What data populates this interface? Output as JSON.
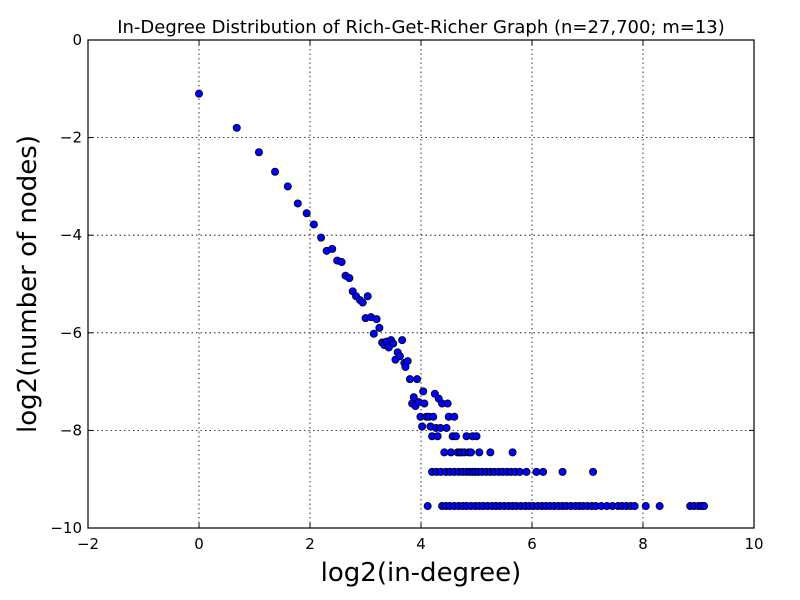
{
  "chart_data": {
    "type": "scatter",
    "title": "In-Degree Distribution of Rich-Get-Richer Graph (n=27,700; m=13)",
    "xlabel": "log2(in-degree)",
    "ylabel": "log2(number of nodes)",
    "xlim": [
      -2,
      10
    ],
    "ylim": [
      -10,
      0
    ],
    "xticks": [
      -2,
      0,
      2,
      4,
      6,
      8,
      10
    ],
    "yticks": [
      -10,
      -8,
      -6,
      -4,
      -2,
      0
    ],
    "xtick_labels": [
      "−2",
      "0",
      "2",
      "4",
      "6",
      "8",
      "10"
    ],
    "ytick_labels": [
      "−10",
      "−8",
      "−6",
      "−4",
      "−2",
      "0"
    ],
    "grid": true,
    "legend": "none",
    "marker_color": "#0000ff",
    "series": [
      {
        "points": [
          [
            0.0,
            -1.1
          ],
          [
            0.68,
            -1.8
          ],
          [
            1.08,
            -2.3
          ],
          [
            1.37,
            -2.7
          ],
          [
            1.6,
            -3.0
          ],
          [
            1.78,
            -3.35
          ],
          [
            1.94,
            -3.55
          ],
          [
            2.07,
            -3.78
          ],
          [
            2.2,
            -4.05
          ],
          [
            2.3,
            -4.32
          ],
          [
            2.4,
            -4.28
          ],
          [
            2.49,
            -4.52
          ],
          [
            2.57,
            -4.55
          ],
          [
            2.64,
            -4.83
          ],
          [
            2.71,
            -4.88
          ],
          [
            2.77,
            -5.15
          ],
          [
            2.83,
            -5.25
          ],
          [
            2.9,
            -5.33
          ],
          [
            2.95,
            -5.38
          ],
          [
            3.0,
            -5.7
          ],
          [
            3.04,
            -5.25
          ],
          [
            3.1,
            -5.68
          ],
          [
            3.15,
            -6.02
          ],
          [
            3.2,
            -5.72
          ],
          [
            3.25,
            -5.9
          ],
          [
            3.3,
            -6.2
          ],
          [
            3.34,
            -6.25
          ],
          [
            3.38,
            -6.18
          ],
          [
            3.42,
            -6.3
          ],
          [
            3.46,
            -6.15
          ],
          [
            3.5,
            -6.22
          ],
          [
            3.54,
            -6.55
          ],
          [
            3.58,
            -6.4
          ],
          [
            3.62,
            -6.48
          ],
          [
            3.66,
            -6.15
          ],
          [
            3.7,
            -6.62
          ],
          [
            3.72,
            -6.7
          ],
          [
            3.76,
            -6.58
          ],
          [
            3.8,
            -6.95
          ],
          [
            3.84,
            -7.45
          ],
          [
            3.87,
            -7.32
          ],
          [
            3.9,
            -7.5
          ],
          [
            3.93,
            -6.95
          ],
          [
            3.96,
            -7.42
          ],
          [
            3.99,
            -7.72
          ],
          [
            4.02,
            -7.92
          ],
          [
            4.04,
            -7.2
          ],
          [
            4.06,
            -7.45
          ],
          [
            4.1,
            -7.72
          ],
          [
            4.14,
            -7.72
          ],
          [
            4.17,
            -7.92
          ],
          [
            4.2,
            -8.12
          ],
          [
            4.22,
            -7.72
          ],
          [
            4.25,
            -7.25
          ],
          [
            4.27,
            -7.95
          ],
          [
            4.3,
            -8.12
          ],
          [
            4.32,
            -7.35
          ],
          [
            4.35,
            -7.95
          ],
          [
            4.38,
            -7.45
          ],
          [
            4.42,
            -8.45
          ],
          [
            4.46,
            -7.95
          ],
          [
            4.48,
            -7.45
          ],
          [
            4.5,
            -7.72
          ],
          [
            4.54,
            -8.45
          ],
          [
            4.57,
            -8.12
          ],
          [
            4.6,
            -7.72
          ],
          [
            4.63,
            -8.12
          ],
          [
            4.66,
            -8.45
          ],
          [
            4.7,
            -8.45
          ],
          [
            4.73,
            -8.45
          ],
          [
            4.78,
            -8.45
          ],
          [
            4.82,
            -8.12
          ],
          [
            4.86,
            -8.45
          ],
          [
            4.9,
            -8.45
          ],
          [
            4.93,
            -8.12
          ],
          [
            5.0,
            -8.12
          ],
          [
            5.05,
            -8.45
          ],
          [
            5.25,
            -8.45
          ],
          [
            5.65,
            -8.45
          ],
          [
            4.2,
            -8.85
          ],
          [
            4.28,
            -8.85
          ],
          [
            4.36,
            -8.85
          ],
          [
            4.45,
            -8.85
          ],
          [
            4.52,
            -8.85
          ],
          [
            4.6,
            -8.85
          ],
          [
            4.68,
            -8.85
          ],
          [
            4.75,
            -8.85
          ],
          [
            4.82,
            -8.85
          ],
          [
            4.88,
            -8.85
          ],
          [
            4.93,
            -8.85
          ],
          [
            4.98,
            -8.85
          ],
          [
            5.03,
            -8.85
          ],
          [
            5.1,
            -8.85
          ],
          [
            5.18,
            -8.85
          ],
          [
            5.25,
            -8.85
          ],
          [
            5.32,
            -8.85
          ],
          [
            5.4,
            -8.85
          ],
          [
            5.47,
            -8.85
          ],
          [
            5.55,
            -8.85
          ],
          [
            5.62,
            -8.85
          ],
          [
            5.7,
            -8.85
          ],
          [
            5.78,
            -8.85
          ],
          [
            5.9,
            -8.85
          ],
          [
            6.08,
            -8.85
          ],
          [
            6.2,
            -8.85
          ],
          [
            6.55,
            -8.85
          ],
          [
            7.1,
            -8.85
          ],
          [
            4.12,
            -9.55
          ],
          [
            4.38,
            -9.55
          ],
          [
            4.45,
            -9.55
          ],
          [
            4.52,
            -9.55
          ],
          [
            4.6,
            -9.55
          ],
          [
            4.68,
            -9.55
          ],
          [
            4.75,
            -9.55
          ],
          [
            4.82,
            -9.55
          ],
          [
            4.9,
            -9.55
          ],
          [
            4.98,
            -9.55
          ],
          [
            5.05,
            -9.55
          ],
          [
            5.12,
            -9.55
          ],
          [
            5.2,
            -9.55
          ],
          [
            5.28,
            -9.55
          ],
          [
            5.35,
            -9.55
          ],
          [
            5.42,
            -9.55
          ],
          [
            5.5,
            -9.55
          ],
          [
            5.58,
            -9.55
          ],
          [
            5.65,
            -9.55
          ],
          [
            5.72,
            -9.55
          ],
          [
            5.8,
            -9.55
          ],
          [
            5.88,
            -9.55
          ],
          [
            5.95,
            -9.55
          ],
          [
            6.02,
            -9.55
          ],
          [
            6.1,
            -9.55
          ],
          [
            6.18,
            -9.55
          ],
          [
            6.25,
            -9.55
          ],
          [
            6.32,
            -9.55
          ],
          [
            6.4,
            -9.55
          ],
          [
            6.48,
            -9.55
          ],
          [
            6.55,
            -9.55
          ],
          [
            6.62,
            -9.55
          ],
          [
            6.7,
            -9.55
          ],
          [
            6.78,
            -9.55
          ],
          [
            6.85,
            -9.55
          ],
          [
            6.92,
            -9.55
          ],
          [
            7.0,
            -9.55
          ],
          [
            7.08,
            -9.55
          ],
          [
            7.15,
            -9.55
          ],
          [
            7.25,
            -9.55
          ],
          [
            7.35,
            -9.55
          ],
          [
            7.45,
            -9.55
          ],
          [
            7.55,
            -9.55
          ],
          [
            7.62,
            -9.55
          ],
          [
            7.7,
            -9.55
          ],
          [
            7.78,
            -9.55
          ],
          [
            7.85,
            -9.55
          ],
          [
            8.05,
            -9.55
          ],
          [
            8.3,
            -9.55
          ],
          [
            8.85,
            -9.55
          ],
          [
            8.92,
            -9.55
          ],
          [
            9.0,
            -9.55
          ],
          [
            9.05,
            -9.55
          ],
          [
            9.1,
            -9.55
          ]
        ]
      }
    ]
  }
}
